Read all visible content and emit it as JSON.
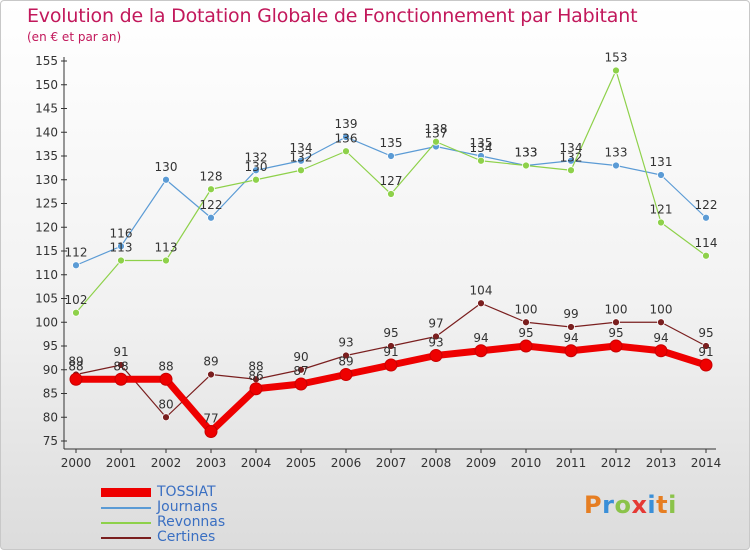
{
  "title": "Evolution de la Dotation Globale de Fonctionnement par Habitant",
  "subtitle": "(en € et par an)",
  "logo": {
    "text": "Proxiti",
    "colors": [
      "#e67e22",
      "#3a8fd8",
      "#8bc34a",
      "#e53935",
      "#3a8fd8",
      "#e67e22",
      "#8bc34a"
    ]
  },
  "chart_data": {
    "type": "line",
    "x": [
      "2000",
      "2001",
      "2002",
      "2003",
      "2004",
      "2005",
      "2006",
      "2007",
      "2008",
      "2009",
      "2010",
      "2011",
      "2012",
      "2013",
      "2014"
    ],
    "ylim": [
      75,
      155
    ],
    "yticks": [
      75,
      80,
      85,
      90,
      95,
      100,
      105,
      110,
      115,
      120,
      125,
      130,
      135,
      140,
      145,
      150,
      155
    ],
    "grid": false,
    "legend_position": "bottom-left",
    "series": [
      {
        "name": "TOSSIAT",
        "color": "#ee0000",
        "bold": true,
        "values": [
          88,
          88,
          88,
          77,
          86,
          87,
          89,
          91,
          93,
          94,
          95,
          94,
          95,
          94,
          91
        ]
      },
      {
        "name": "Journans",
        "color": "#5b9bd5",
        "values": [
          112,
          116,
          130,
          122,
          132,
          134,
          139,
          135,
          137,
          135,
          133,
          134,
          133,
          131,
          122
        ]
      },
      {
        "name": "Revonnas",
        "color": "#8ed14a",
        "values": [
          102,
          113,
          113,
          128,
          130,
          132,
          136,
          127,
          138,
          134,
          133,
          132,
          153,
          121,
          114
        ]
      },
      {
        "name": "Certines",
        "color": "#7a1f1f",
        "values": [
          89,
          91,
          80,
          89,
          88,
          90,
          93,
          95,
          97,
          104,
          100,
          99,
          100,
          100,
          95
        ]
      }
    ]
  }
}
